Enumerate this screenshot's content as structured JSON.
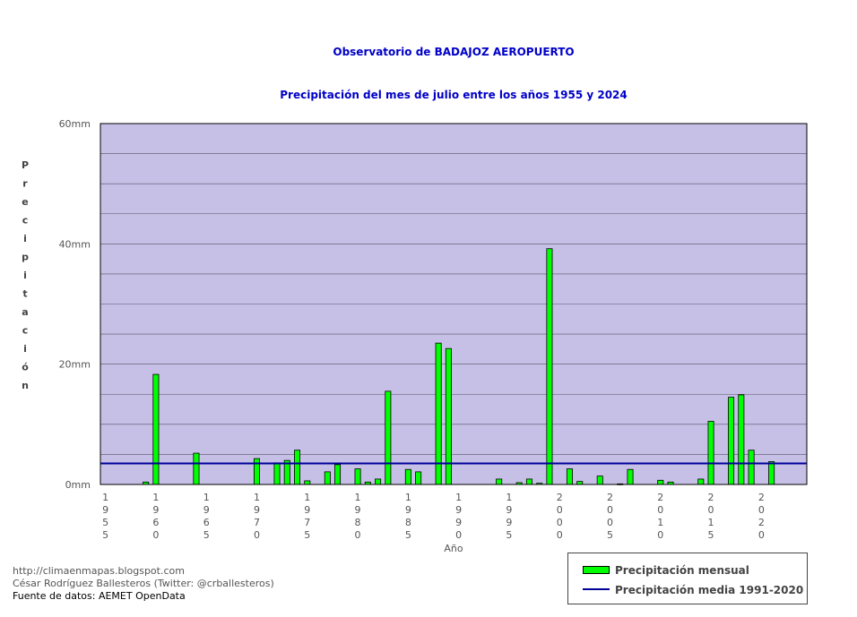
{
  "header": {
    "title": "Observatorio de BADAJOZ AEROPUERTO",
    "subtitle": "Precipitación del mes de julio entre los años 1955 y 2024"
  },
  "credits": {
    "blog": "http://climaenmapas.blogspot.com",
    "author": "César Rodríguez Ballesteros (Twitter: @crballesteros)",
    "source": "Fuente de datos: AEMET OpenData"
  },
  "legend": {
    "monthly": "Precipitación mensual",
    "mean": "Precipitación media 1991-2020"
  },
  "colors": {
    "plot_background": "#c6bfe6",
    "bar_fill": "#00ff00",
    "mean_line": "#000099",
    "title": "#0000c8"
  },
  "chart_data": {
    "type": "bar",
    "title": "Observatorio de BADAJOZ AEROPUERTO",
    "subtitle": "Precipitación del mes de julio entre los años 1955 y 2024",
    "xlabel": "Año",
    "ylabel": "Precipitación",
    "ylim": [
      0,
      60
    ],
    "y_ticks": [
      "0mm",
      "20mm",
      "40mm",
      "60mm"
    ],
    "grid": true,
    "x_ticks": [
      "1955",
      "1960",
      "1965",
      "1970",
      "1975",
      "1980",
      "1985",
      "1990",
      "1995",
      "2000",
      "2005",
      "2010",
      "2015",
      "2020"
    ],
    "categories": [
      1955,
      1956,
      1957,
      1958,
      1959,
      1960,
      1961,
      1962,
      1963,
      1964,
      1965,
      1966,
      1967,
      1968,
      1969,
      1970,
      1971,
      1972,
      1973,
      1974,
      1975,
      1976,
      1977,
      1978,
      1979,
      1980,
      1981,
      1982,
      1983,
      1984,
      1985,
      1986,
      1987,
      1988,
      1989,
      1990,
      1991,
      1992,
      1993,
      1994,
      1995,
      1996,
      1997,
      1998,
      1999,
      2000,
      2001,
      2002,
      2003,
      2004,
      2005,
      2006,
      2007,
      2008,
      2009,
      2010,
      2011,
      2012,
      2013,
      2014,
      2015,
      2016,
      2017,
      2018,
      2019,
      2020,
      2021,
      2022,
      2023,
      2024
    ],
    "series": [
      {
        "name": "Precipitación mensual",
        "values": [
          0,
          0,
          0,
          0,
          0.4,
          18.3,
          0,
          0,
          0,
          5.2,
          0,
          0,
          0,
          0,
          0,
          4.3,
          0,
          3.6,
          4,
          5.7,
          0.6,
          0,
          2.1,
          3.3,
          0,
          2.6,
          0.4,
          0.9,
          15.5,
          0,
          2.5,
          2.1,
          0,
          23.5,
          22.6,
          0,
          0,
          0,
          0,
          0.9,
          0,
          0.3,
          0.9,
          0.2,
          39.2,
          0,
          2.6,
          0.5,
          0,
          1.4,
          0,
          0.1,
          2.5,
          0,
          0,
          0.7,
          0.4,
          0,
          0,
          0.9,
          10.5,
          0,
          14.5,
          14.9,
          5.7,
          0,
          3.8,
          0,
          0,
          0
        ]
      }
    ],
    "reference_line": {
      "name": "Precipitación media 1991-2020",
      "value": 3.5
    }
  }
}
